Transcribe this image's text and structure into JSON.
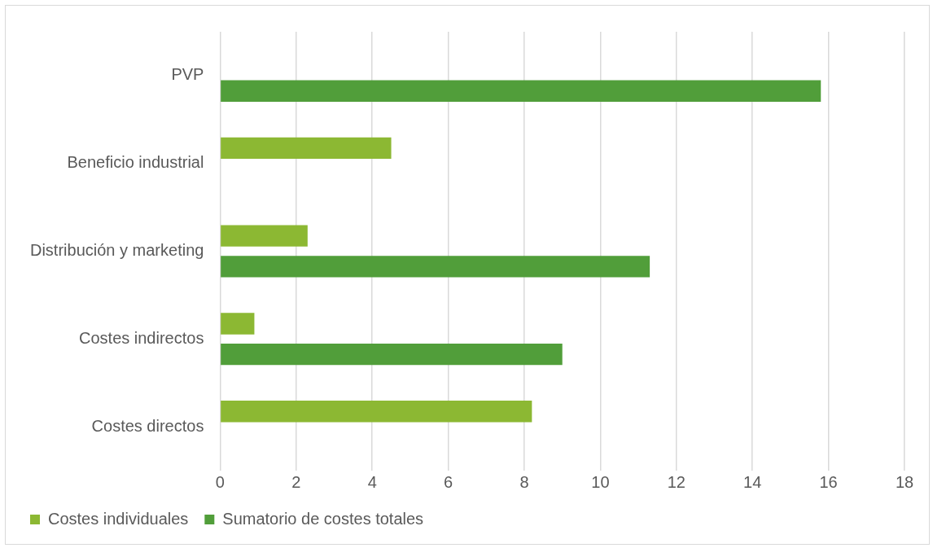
{
  "chart_data": {
    "type": "bar",
    "orientation": "horizontal",
    "categories": [
      "PVP",
      "Beneficio industrial",
      "Distribución y marketing",
      "Costes indirectos",
      "Costes directos"
    ],
    "series": [
      {
        "name": "Costes individuales",
        "color": "#8cb833",
        "values": [
          null,
          4.5,
          2.3,
          0.9,
          8.2
        ]
      },
      {
        "name": "Sumatorio de costes totales",
        "color": "#519e3a",
        "values": [
          15.8,
          null,
          11.3,
          9.0,
          null
        ]
      }
    ],
    "xlim": [
      0,
      18
    ],
    "xticks": [
      0,
      2,
      4,
      6,
      8,
      10,
      12,
      14,
      16,
      18
    ],
    "grid": "x",
    "legend": "bottom"
  }
}
